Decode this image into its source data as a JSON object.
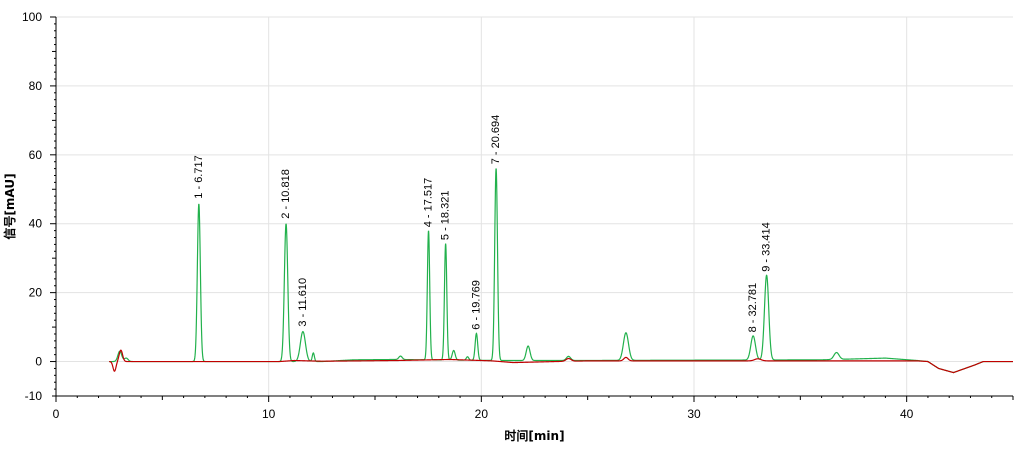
{
  "chart_data": {
    "type": "line",
    "title": "",
    "xlabel": "时间[min]",
    "ylabel": "信号[mAU]",
    "xlim": [
      0,
      45
    ],
    "ylim": [
      -10,
      100
    ],
    "x_ticks": [
      0,
      10,
      20,
      30,
      40
    ],
    "y_ticks": [
      0,
      20,
      40,
      60,
      80,
      100
    ],
    "grid": true,
    "colors": {
      "series_green": "#22b14c",
      "series_red": "#c00000",
      "grid": "#e3e3e3",
      "axis": "#000000"
    },
    "series": [
      {
        "color": "#22b14c",
        "baseline_points": [
          [
            2.5,
            0
          ],
          [
            12.5,
            0
          ],
          [
            14,
            0.5
          ],
          [
            16,
            0.6
          ],
          [
            19,
            0.4
          ],
          [
            21,
            0.3
          ],
          [
            24,
            0.3
          ],
          [
            30,
            0.4
          ],
          [
            36,
            0.5
          ],
          [
            39,
            1.0
          ],
          [
            40.5,
            0.3
          ],
          [
            41.0,
            0
          ],
          [
            41.5,
            -2.0
          ],
          [
            42.2,
            -3.2
          ],
          [
            43.2,
            -1.0
          ],
          [
            43.6,
            0
          ],
          [
            45,
            0
          ]
        ],
        "peaks": [
          {
            "t": 3.0,
            "h": 3.0,
            "w": 0.09
          },
          {
            "t": 3.3,
            "h": 1.0,
            "w": 0.09
          },
          {
            "t": 6.717,
            "h": 45.8,
            "w": 0.07
          },
          {
            "t": 10.818,
            "h": 40.0,
            "w": 0.08
          },
          {
            "t": 11.61,
            "h": 8.7,
            "w": 0.12
          },
          {
            "t": 12.1,
            "h": 2.5,
            "w": 0.05
          },
          {
            "t": 16.2,
            "h": 1.0,
            "w": 0.08
          },
          {
            "t": 17.517,
            "h": 37.5,
            "w": 0.055
          },
          {
            "t": 18.321,
            "h": 33.8,
            "w": 0.055
          },
          {
            "t": 18.7,
            "h": 2.8,
            "w": 0.07
          },
          {
            "t": 19.35,
            "h": 1.0,
            "w": 0.06
          },
          {
            "t": 19.769,
            "h": 7.8,
            "w": 0.06
          },
          {
            "t": 20.694,
            "h": 55.8,
            "w": 0.065
          },
          {
            "t": 22.2,
            "h": 4.2,
            "w": 0.09
          },
          {
            "t": 24.1,
            "h": 1.2,
            "w": 0.1
          },
          {
            "t": 26.8,
            "h": 8.0,
            "w": 0.12
          },
          {
            "t": 32.781,
            "h": 7.0,
            "w": 0.11
          },
          {
            "t": 33.414,
            "h": 24.6,
            "w": 0.1
          },
          {
            "t": 36.7,
            "h": 2.0,
            "w": 0.12
          }
        ]
      },
      {
        "color": "#c00000",
        "baseline_points": [
          [
            2.5,
            0
          ],
          [
            10.5,
            0
          ],
          [
            11.2,
            0.3
          ],
          [
            12.5,
            0.1
          ],
          [
            16,
            0.3
          ],
          [
            18.5,
            0.6
          ],
          [
            20.5,
            0.2
          ],
          [
            21.5,
            -0.3
          ],
          [
            23.5,
            0
          ],
          [
            25,
            0.2
          ],
          [
            30,
            0.2
          ],
          [
            34,
            0.2
          ],
          [
            38,
            0.2
          ],
          [
            40.5,
            0.2
          ],
          [
            41.0,
            0
          ],
          [
            41.5,
            -2.0
          ],
          [
            42.2,
            -3.2
          ],
          [
            43.2,
            -1.0
          ],
          [
            43.6,
            0
          ],
          [
            45,
            0
          ]
        ],
        "peaks": [
          {
            "t": 2.75,
            "h": -2.8,
            "w": 0.07
          },
          {
            "t": 3.05,
            "h": 3.3,
            "w": 0.08
          },
          {
            "t": 24.1,
            "h": 0.8,
            "w": 0.12
          },
          {
            "t": 26.8,
            "h": 1.0,
            "w": 0.1
          },
          {
            "t": 33.0,
            "h": 0.6,
            "w": 0.15
          }
        ]
      }
    ],
    "annotations": [
      {
        "text": "1 - 6.717",
        "x": 6.717,
        "y": 45.8
      },
      {
        "text": "2 - 10.818",
        "x": 10.818,
        "y": 40.0
      },
      {
        "text": "3 - 11.610",
        "x": 11.61,
        "y": 8.7
      },
      {
        "text": "4 - 17.517",
        "x": 17.517,
        "y": 37.5
      },
      {
        "text": "5 - 18.321",
        "x": 18.321,
        "y": 33.8
      },
      {
        "text": "6 - 19.769",
        "x": 19.769,
        "y": 7.8
      },
      {
        "text": "7 - 20.694",
        "x": 20.694,
        "y": 55.8
      },
      {
        "text": "8 - 32.781",
        "x": 32.781,
        "y": 7.0
      },
      {
        "text": "9 - 33.414",
        "x": 33.414,
        "y": 24.6
      }
    ]
  }
}
